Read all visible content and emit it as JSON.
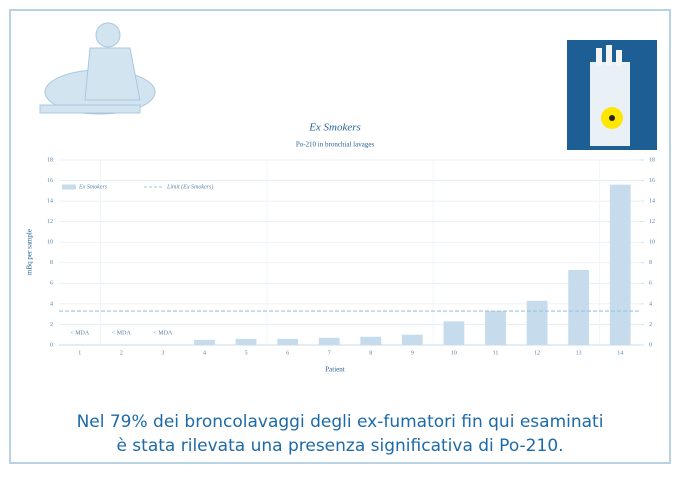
{
  "chart_data": {
    "type": "bar",
    "title": "Ex Smokers",
    "subtitle": "Po-210 in bronchial lavages",
    "x_label": "Patient",
    "y_label": "mBq per sample",
    "categories": [
      "1",
      "2",
      "3",
      "4",
      "5",
      "6",
      "7",
      "8",
      "9",
      "10",
      "11",
      "12",
      "13",
      "14"
    ],
    "series": [
      {
        "name": "Ex Smokers",
        "color": "#c6dbec",
        "values": [
          null,
          null,
          null,
          0.5,
          0.6,
          0.6,
          0.7,
          0.8,
          1.0,
          2.3,
          3.3,
          4.3,
          7.3,
          15.6
        ],
        "value_labels": [
          "< MDA",
          "< MDA",
          "< MDA",
          null,
          null,
          null,
          null,
          null,
          null,
          null,
          null,
          null,
          null,
          null
        ]
      }
    ],
    "reference_line": {
      "name": "Limit (Ex Smokers)",
      "value": 3.3,
      "color": "#9cc3de"
    },
    "ylim": [
      0,
      18
    ],
    "yticks": [
      0,
      2,
      4,
      6,
      8,
      10,
      12,
      14,
      16,
      18
    ],
    "y2lim": [
      0,
      18
    ],
    "y2ticks": [
      0,
      2,
      4,
      6,
      8,
      10,
      12,
      14,
      16,
      18
    ],
    "grid": true
  },
  "caption": [
    "Nel 79% dei broncolavaggi degli ex-fumatori fin qui esaminati",
    "è stata rilevata una presenza significativa di Po-210."
  ]
}
